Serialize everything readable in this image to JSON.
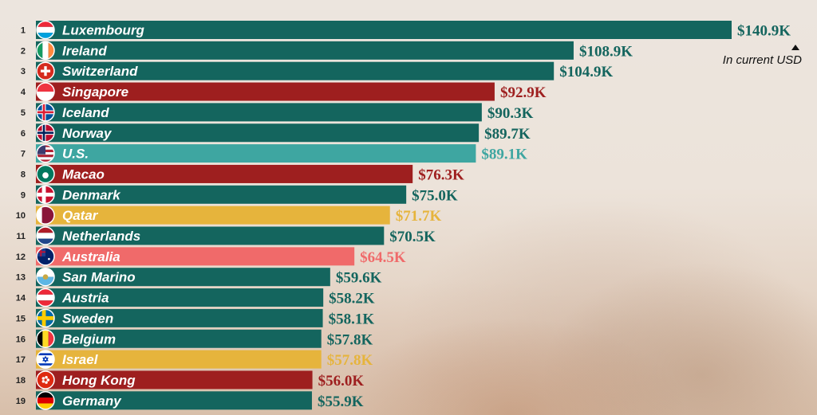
{
  "note": "In current USD",
  "colors": {
    "default": "#14655e",
    "highlight_red": "#9e1f1f",
    "highlight_teal": "#3ea6a1",
    "highlight_gold": "#e6b43c",
    "highlight_pink": "#f06a6a"
  },
  "chart_data": {
    "type": "bar",
    "orientation": "horizontal",
    "categories": [
      "Luxembourg",
      "Ireland",
      "Switzerland",
      "Singapore",
      "Iceland",
      "Norway",
      "U.S.",
      "Macao",
      "Denmark",
      "Qatar",
      "Netherlands",
      "Australia",
      "San Marino",
      "Austria",
      "Sweden",
      "Belgium",
      "Israel",
      "Hong Kong",
      "Germany"
    ],
    "ranks": [
      "1",
      "2",
      "3",
      "4",
      "5",
      "6",
      "7",
      "8",
      "9",
      "10",
      "11",
      "12",
      "13",
      "14",
      "15",
      "16",
      "17",
      "18",
      "19"
    ],
    "values": [
      140.9,
      108.9,
      104.9,
      92.9,
      90.3,
      89.7,
      89.1,
      76.3,
      75.0,
      71.7,
      70.5,
      64.5,
      59.6,
      58.2,
      58.1,
      57.8,
      57.8,
      56.0,
      55.9
    ],
    "value_labels": [
      "$140.9K",
      "$108.9K",
      "$104.9K",
      "$92.9K",
      "$90.3K",
      "$89.7K",
      "$89.1K",
      "$76.3K",
      "$75.0K",
      "$71.7K",
      "$70.5K",
      "$64.5K",
      "$59.6K",
      "$58.2K",
      "$58.1K",
      "$57.8K",
      "$57.8K",
      "$56.0K",
      "$55.9K"
    ],
    "color_keys": [
      "default",
      "default",
      "default",
      "highlight_red",
      "default",
      "default",
      "highlight_teal",
      "highlight_red",
      "default",
      "highlight_gold",
      "default",
      "highlight_pink",
      "default",
      "default",
      "default",
      "default",
      "highlight_gold",
      "highlight_red",
      "default"
    ],
    "flags": [
      "luxembourg-flag-icon",
      "ireland-flag-icon",
      "switzerland-flag-icon",
      "singapore-flag-icon",
      "iceland-flag-icon",
      "norway-flag-icon",
      "us-flag-icon",
      "macao-flag-icon",
      "denmark-flag-icon",
      "qatar-flag-icon",
      "netherlands-flag-icon",
      "australia-flag-icon",
      "san-marino-flag-icon",
      "austria-flag-icon",
      "sweden-flag-icon",
      "belgium-flag-icon",
      "israel-flag-icon",
      "hong-kong-flag-icon",
      "germany-flag-icon"
    ],
    "grid": false
  }
}
